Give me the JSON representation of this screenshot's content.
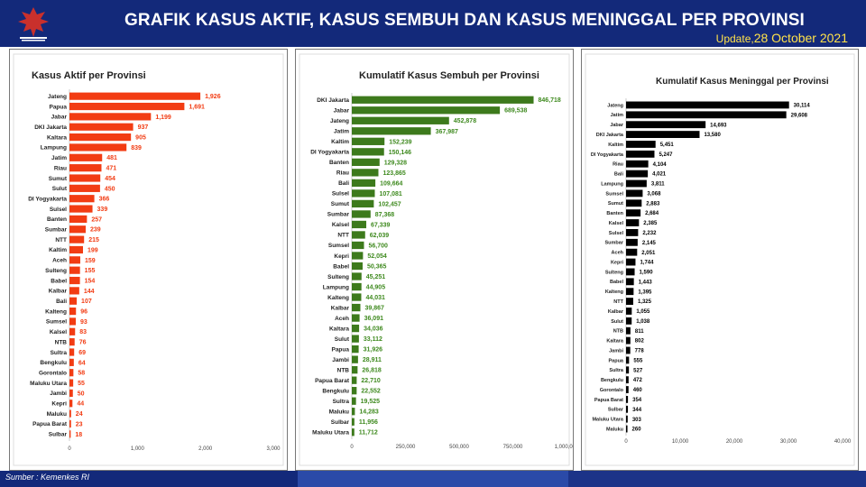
{
  "header": {
    "title": "GRAFIK KASUS AKTIF, KASUS SEMBUH DAN KASUS MENINGGAL PER PROVINSI",
    "update_label": "Update,",
    "update_date": "28 October 2021"
  },
  "footer": {
    "source": "Sumber : Kemenkes RI"
  },
  "colors": {
    "header_bg": "#13297a",
    "aktif": "#f23c13",
    "aktif_label": "#f23c13",
    "sembuh": "#3d7a1c",
    "sembuh_label": "#3f8a1f",
    "meninggal": "#000000",
    "update": "#ffe24a"
  },
  "chart_data": [
    {
      "type": "bar",
      "orientation": "horizontal",
      "title": "Kasus Aktif per Provinsi",
      "xlim": [
        0,
        3000
      ],
      "xticks": [
        "0",
        "1,000",
        "2,000",
        "3,000"
      ],
      "categories": [
        "Jateng",
        "Papua",
        "Jabar",
        "DKI Jakarta",
        "Kaltara",
        "Lampung",
        "Jatim",
        "Riau",
        "Sumut",
        "Sulut",
        "DI Yogyakarta",
        "Sulsel",
        "Banten",
        "Sumbar",
        "NTT",
        "Kaltim",
        "Aceh",
        "Sulteng",
        "Babel",
        "Kalbar",
        "Bali",
        "Kalteng",
        "Sumsel",
        "Kalsel",
        "NTB",
        "Sultra",
        "Bengkulu",
        "Gorontalo",
        "Maluku Utara",
        "Jambi",
        "Kepri",
        "Maluku",
        "Papua Barat",
        "Sulbar"
      ],
      "values": [
        1926,
        1691,
        1199,
        937,
        905,
        839,
        481,
        471,
        454,
        450,
        366,
        339,
        257,
        239,
        215,
        199,
        159,
        155,
        154,
        144,
        107,
        96,
        93,
        83,
        76,
        69,
        64,
        58,
        55,
        50,
        44,
        24,
        23,
        18
      ],
      "value_labels": [
        "1,926",
        "1,691",
        "1,199",
        "937",
        "905",
        "839",
        "481",
        "471",
        "454",
        "450",
        "366",
        "339",
        "257",
        "239",
        "215",
        "199",
        "159",
        "155",
        "154",
        "144",
        "107",
        "96",
        "93",
        "83",
        "76",
        "69",
        "64",
        "58",
        "55",
        "50",
        "44",
        "24",
        "23",
        "18"
      ]
    },
    {
      "type": "bar",
      "orientation": "horizontal",
      "title": "Kumulatif Kasus Sembuh per Provinsi",
      "xlim": [
        0,
        1000000
      ],
      "xticks": [
        "0",
        "250,000",
        "500,000",
        "750,000",
        "1,000,000"
      ],
      "categories": [
        "DKI Jakarta",
        "Jabar",
        "Jateng",
        "Jatim",
        "Kaltim",
        "DI Yogyakarta",
        "Banten",
        "Riau",
        "Bali",
        "Sulsel",
        "Sumut",
        "Sumbar",
        "Kalsel",
        "NTT",
        "Sumsel",
        "Kepri",
        "Babel",
        "Sulteng",
        "Lampung",
        "Kalteng",
        "Kalbar",
        "Aceh",
        "Kaltara",
        "Sulut",
        "Papua",
        "Jambi",
        "NTB",
        "Papua Barat",
        "Bengkulu",
        "Sultra",
        "Maluku",
        "Sulbar",
        "Maluku Utara"
      ],
      "values": [
        846718,
        689538,
        452878,
        367987,
        152239,
        150146,
        129328,
        123865,
        109664,
        107081,
        102457,
        87368,
        67339,
        62039,
        56700,
        52054,
        50365,
        45251,
        44905,
        44031,
        39867,
        36091,
        34036,
        33112,
        31926,
        28911,
        26818,
        22710,
        22552,
        19525,
        14283,
        11956,
        11712
      ],
      "value_labels": [
        "846,718",
        "689,538",
        "452,878",
        "367,987",
        "152,239",
        "150,146",
        "129,328",
        "123,865",
        "109,664",
        "107,081",
        "102,457",
        "87,368",
        "67,339",
        "62,039",
        "56,700",
        "52,054",
        "50,365",
        "45,251",
        "44,905",
        "44,031",
        "39,867",
        "36,091",
        "34,036",
        "33,112",
        "31,926",
        "28,911",
        "26,818",
        "22,710",
        "22,552",
        "19,525",
        "14,283",
        "11,956",
        "11,712"
      ]
    },
    {
      "type": "bar",
      "orientation": "horizontal",
      "title": "Kumulatif Kasus Meninggal per Provinsi",
      "xlim": [
        0,
        40000
      ],
      "xticks": [
        "0",
        "10,000",
        "20,000",
        "30,000",
        "40,000"
      ],
      "categories": [
        "Jateng",
        "Jatim",
        "Jabar",
        "DKI Jakarta",
        "Kaltim",
        "DI Yogyakarta",
        "Riau",
        "Bali",
        "Lampung",
        "Sumsel",
        "Sumut",
        "Banten",
        "Kalsel",
        "Sulsel",
        "Sumbar",
        "Aceh",
        "Kepri",
        "Sulteng",
        "Babel",
        "Kalteng",
        "NTT",
        "Kalbar",
        "Sulut",
        "NTB",
        "Kaltara",
        "Jambi",
        "Papua",
        "Sultra",
        "Bengkulu",
        "Gorontalo",
        "Papua Barat",
        "Sulbar",
        "Maluku Utara",
        "Maluku"
      ],
      "values": [
        30114,
        29608,
        14693,
        13580,
        5451,
        5247,
        4104,
        4021,
        3811,
        3068,
        2883,
        2684,
        2385,
        2232,
        2145,
        2051,
        1744,
        1590,
        1443,
        1395,
        1325,
        1055,
        1038,
        811,
        802,
        778,
        555,
        527,
        472,
        460,
        354,
        344,
        303,
        260
      ],
      "value_labels": [
        "30,114",
        "29,608",
        "14,693",
        "13,580",
        "5,451",
        "5,247",
        "4,104",
        "4,021",
        "3,811",
        "3,068",
        "2,883",
        "2,684",
        "2,385",
        "2,232",
        "2,145",
        "2,051",
        "1,744",
        "1,590",
        "1,443",
        "1,395",
        "1,325",
        "1,055",
        "1,038",
        "811",
        "802",
        "778",
        "555",
        "527",
        "472",
        "460",
        "354",
        "344",
        "303",
        "260"
      ]
    }
  ]
}
